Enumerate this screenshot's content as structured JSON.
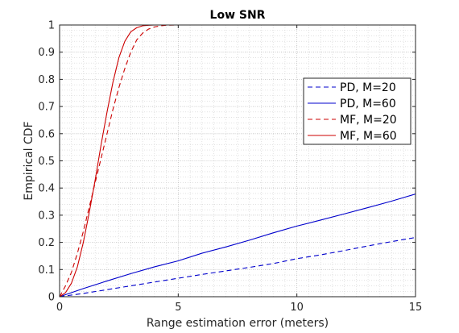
{
  "chart_data": {
    "type": "line",
    "title": "Low SNR",
    "xlabel": "Range estimation error (meters)",
    "ylabel": "Empirical CDF",
    "xlim": [
      0,
      15
    ],
    "ylim": [
      0,
      1
    ],
    "xticks": [
      0,
      5,
      10,
      15
    ],
    "yticks": [
      0,
      0.1,
      0.2,
      0.3,
      0.4,
      0.5,
      0.6,
      0.7,
      0.8,
      0.9,
      1
    ],
    "grid": true,
    "minor_grid": true,
    "legend_position": "right",
    "series": [
      {
        "name": "PD, M=20",
        "color": "#0000cc",
        "linestyle": "dashed",
        "x": [
          0,
          1,
          2,
          3,
          4,
          5,
          6,
          7,
          8,
          9,
          10,
          11,
          12,
          13,
          14,
          15
        ],
        "y": [
          0,
          0.012,
          0.026,
          0.04,
          0.054,
          0.068,
          0.082,
          0.095,
          0.108,
          0.122,
          0.14,
          0.154,
          0.17,
          0.187,
          0.203,
          0.218
        ]
      },
      {
        "name": "PD, M=60",
        "color": "#0000cc",
        "linestyle": "solid",
        "x": [
          0,
          1,
          2,
          3,
          4,
          5,
          6,
          7,
          8,
          9,
          10,
          11,
          12,
          13,
          14,
          15
        ],
        "y": [
          0,
          0.03,
          0.058,
          0.085,
          0.11,
          0.132,
          0.16,
          0.183,
          0.208,
          0.235,
          0.26,
          0.282,
          0.305,
          0.328,
          0.352,
          0.378
        ]
      },
      {
        "name": "MF, M=20",
        "color": "#cc0000",
        "linestyle": "dashed",
        "x": [
          0,
          0.25,
          0.5,
          0.75,
          1,
          1.25,
          1.5,
          1.75,
          2,
          2.25,
          2.5,
          2.75,
          3,
          3.25,
          3.5,
          3.75,
          4,
          4.25,
          4.5,
          5,
          6,
          10,
          15
        ],
        "y": [
          0,
          0.04,
          0.09,
          0.16,
          0.24,
          0.33,
          0.42,
          0.51,
          0.6,
          0.69,
          0.77,
          0.84,
          0.9,
          0.945,
          0.97,
          0.985,
          0.993,
          0.997,
          0.999,
          1,
          1,
          1,
          1
        ]
      },
      {
        "name": "MF, M=60",
        "color": "#cc0000",
        "linestyle": "solid",
        "x": [
          0,
          0.25,
          0.5,
          0.75,
          1,
          1.25,
          1.5,
          1.75,
          2,
          2.25,
          2.5,
          2.75,
          3,
          3.25,
          3.5,
          3.75,
          4,
          4.5,
          5,
          10,
          15
        ],
        "y": [
          0,
          0.015,
          0.05,
          0.11,
          0.2,
          0.31,
          0.43,
          0.56,
          0.68,
          0.79,
          0.88,
          0.94,
          0.975,
          0.99,
          0.997,
          0.999,
          1,
          1,
          1,
          1,
          1
        ]
      }
    ]
  }
}
